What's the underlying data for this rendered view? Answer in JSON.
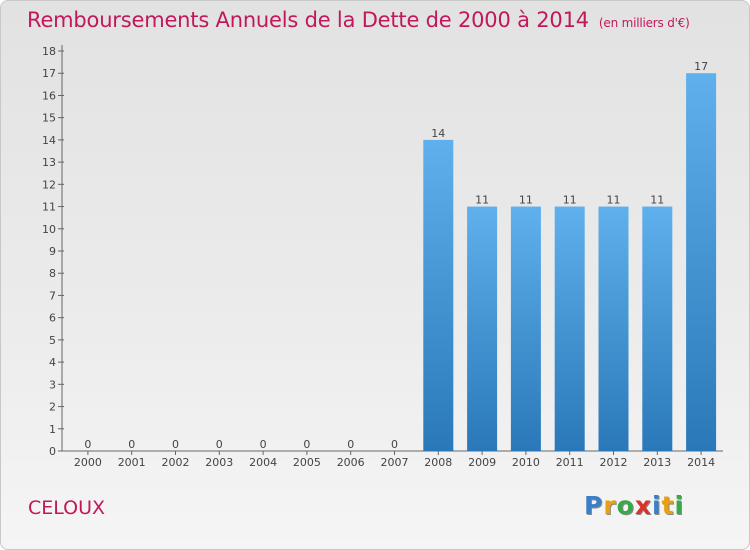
{
  "header": {
    "title": "Remboursements Annuels de la Dette de 2000 à 2014",
    "unit": "(en milliers d'€)"
  },
  "footer": {
    "commune": "CELOUX",
    "logo_letters": [
      "P",
      "r",
      "o",
      "x",
      "i",
      "t",
      "i"
    ],
    "logo_colors": [
      "#3a7fc7",
      "#e8a010",
      "#39a849",
      "#d9332b",
      "#3a7fc7",
      "#e8a010",
      "#39a849"
    ]
  },
  "chart_data": {
    "type": "bar",
    "categories": [
      "2000",
      "2001",
      "2002",
      "2003",
      "2004",
      "2005",
      "2006",
      "2007",
      "2008",
      "2009",
      "2010",
      "2011",
      "2012",
      "2013",
      "2014"
    ],
    "values": [
      0,
      0,
      0,
      0,
      0,
      0,
      0,
      0,
      14,
      11,
      11,
      11,
      11,
      11,
      17
    ],
    "y_ticks": [
      0,
      1,
      2,
      3,
      4,
      5,
      6,
      7,
      8,
      9,
      10,
      11,
      12,
      13,
      14,
      15,
      16,
      17,
      18
    ],
    "ylim": [
      0,
      18
    ],
    "bar_color": "#4a9ee0",
    "grid": false
  }
}
